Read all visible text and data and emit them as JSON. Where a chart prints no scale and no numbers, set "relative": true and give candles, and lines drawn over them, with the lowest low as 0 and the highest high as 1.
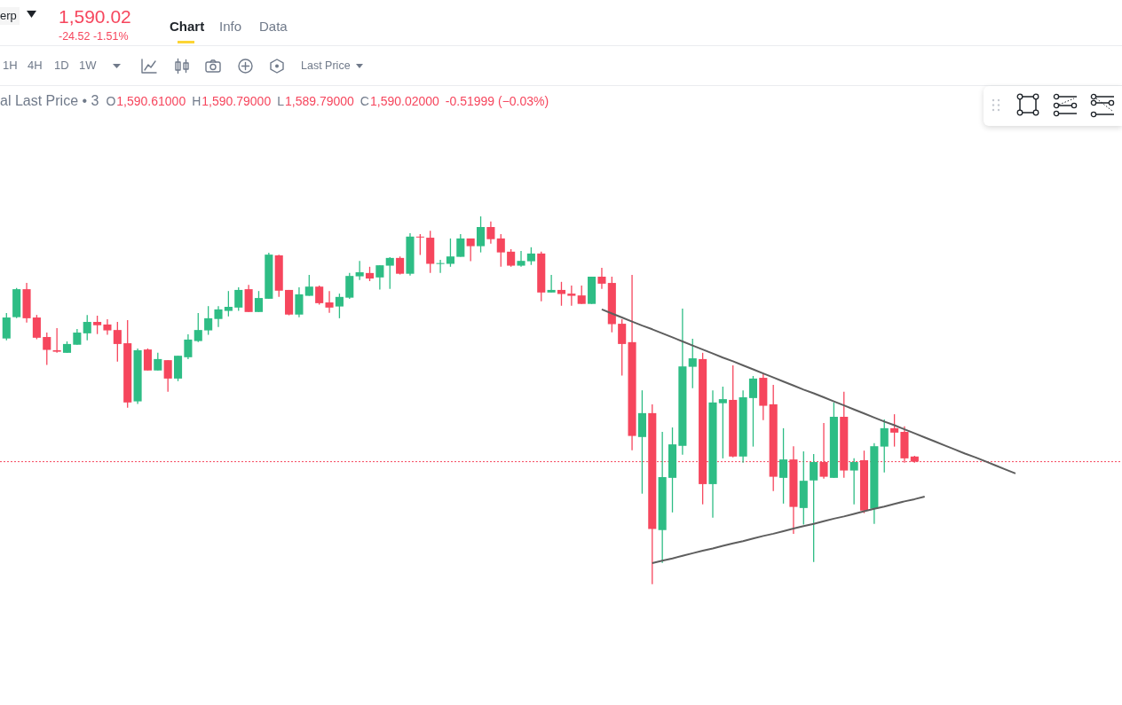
{
  "chart_data": {
    "type": "candlestick",
    "relative": true,
    "categories": [
      null,
      null,
      null,
      null,
      null,
      null,
      null,
      null,
      null,
      null,
      null,
      null,
      null,
      null,
      null,
      null,
      null,
      null,
      null,
      null,
      null,
      null,
      null,
      null,
      null,
      null,
      null,
      null,
      null,
      null,
      null,
      null,
      null,
      null,
      null,
      null,
      null,
      null,
      null,
      null,
      null,
      null,
      null,
      null,
      null,
      null,
      null,
      null,
      null,
      null,
      null,
      null,
      null,
      null,
      null,
      null,
      null,
      null,
      null,
      null,
      null,
      null,
      null,
      null,
      null,
      null,
      null,
      null,
      null,
      null,
      null,
      null,
      null,
      null,
      null,
      null,
      null,
      null,
      null,
      null,
      null,
      null,
      null,
      null,
      null,
      null,
      null,
      null,
      null,
      null,
      null,
      null,
      null,
      null,
      null,
      null,
      null,
      null,
      null,
      null,
      null
    ],
    "ohlc": [
      [
        0.668,
        0.737,
        0.663,
        0.725
      ],
      [
        0.726,
        0.805,
        0.723,
        0.802
      ],
      [
        0.802,
        0.819,
        0.711,
        0.723
      ],
      [
        0.725,
        0.732,
        0.666,
        0.67
      ],
      [
        0.672,
        0.684,
        0.596,
        0.637
      ],
      [
        0.636,
        0.696,
        0.629,
        0.632
      ],
      [
        0.629,
        0.66,
        0.629,
        0.653
      ],
      [
        0.651,
        0.694,
        0.651,
        0.684
      ],
      [
        0.682,
        0.732,
        0.663,
        0.713
      ],
      [
        0.713,
        0.73,
        0.68,
        0.704
      ],
      [
        0.706,
        0.72,
        0.678,
        0.69
      ],
      [
        0.691,
        0.713,
        0.605,
        0.653
      ],
      [
        0.655,
        0.718,
        0.48,
        0.494
      ],
      [
        0.497,
        0.641,
        0.49,
        0.636
      ],
      [
        0.638,
        0.641,
        0.581,
        0.581
      ],
      [
        0.581,
        0.629,
        0.581,
        0.612
      ],
      [
        0.609,
        0.609,
        0.523,
        0.559
      ],
      [
        0.559,
        0.621,
        0.552,
        0.621
      ],
      [
        0.617,
        0.679,
        0.612,
        0.665
      ],
      [
        0.661,
        0.737,
        0.658,
        0.691
      ],
      [
        0.69,
        0.756,
        0.678,
        0.723
      ],
      [
        0.721,
        0.756,
        0.699,
        0.747
      ],
      [
        0.743,
        0.797,
        0.728,
        0.754
      ],
      [
        0.752,
        0.807,
        0.743,
        0.8
      ],
      [
        0.802,
        0.814,
        0.74,
        0.74
      ],
      [
        0.74,
        0.797,
        0.74,
        0.778
      ],
      [
        0.776,
        0.901,
        0.776,
        0.896
      ],
      [
        0.894,
        0.896,
        0.781,
        0.798
      ],
      [
        0.8,
        0.8,
        0.731,
        0.733
      ],
      [
        0.733,
        0.807,
        0.726,
        0.788
      ],
      [
        0.784,
        0.841,
        0.784,
        0.809
      ],
      [
        0.809,
        0.812,
        0.76,
        0.764
      ],
      [
        0.766,
        0.797,
        0.738,
        0.752
      ],
      [
        0.755,
        0.79,
        0.723,
        0.781
      ],
      [
        0.779,
        0.846,
        0.776,
        0.838
      ],
      [
        0.837,
        0.879,
        0.827,
        0.848
      ],
      [
        0.846,
        0.863,
        0.824,
        0.831
      ],
      [
        0.834,
        0.867,
        0.801,
        0.867
      ],
      [
        0.866,
        0.889,
        0.803,
        0.887
      ],
      [
        0.887,
        0.891,
        0.842,
        0.844
      ],
      [
        0.844,
        0.954,
        0.839,
        0.945
      ],
      [
        0.945,
        0.952,
        0.895,
        0.943
      ],
      [
        0.942,
        0.961,
        0.846,
        0.871
      ],
      [
        0.871,
        0.882,
        0.846,
        0.873
      ],
      [
        0.871,
        0.94,
        0.863,
        0.891
      ],
      [
        0.89,
        0.952,
        0.89,
        0.94
      ],
      [
        0.94,
        0.94,
        0.878,
        0.919
      ],
      [
        0.919,
        1.0,
        0.902,
        0.971
      ],
      [
        0.971,
        0.986,
        0.926,
        0.938
      ],
      [
        0.94,
        0.952,
        0.863,
        0.902
      ],
      [
        0.904,
        0.911,
        0.863,
        0.866
      ],
      [
        0.866,
        0.906,
        0.863,
        0.879
      ],
      [
        0.878,
        0.916,
        0.868,
        0.899
      ],
      [
        0.899,
        0.904,
        0.769,
        0.793
      ],
      [
        0.793,
        0.841,
        0.793,
        0.8
      ],
      [
        0.8,
        0.822,
        0.757,
        0.789
      ],
      [
        0.79,
        0.812,
        0.757,
        0.784
      ],
      [
        0.785,
        0.812,
        0.762,
        0.762
      ],
      [
        0.762,
        0.836,
        0.762,
        0.836
      ],
      [
        0.836,
        0.86,
        0.803,
        0.817
      ],
      [
        0.819,
        0.836,
        0.685,
        0.707
      ],
      [
        0.708,
        0.72,
        0.567,
        0.653
      ],
      [
        0.658,
        0.841,
        0.364,
        0.403
      ],
      [
        0.4,
        0.527,
        0.246,
        0.465
      ],
      [
        0.465,
        0.489,
        0,
        0.15
      ],
      [
        0.147,
        0.414,
        0.058,
        0.291
      ],
      [
        0.289,
        0.426,
        0.195,
        0.38
      ],
      [
        0.376,
        0.749,
        0.352,
        0.592
      ],
      [
        0.591,
        0.667,
        0.533,
        0.614
      ],
      [
        0.612,
        0.629,
        0.217,
        0.272
      ],
      [
        0.272,
        0.527,
        0.181,
        0.494
      ],
      [
        0.492,
        0.537,
        0.342,
        0.503
      ],
      [
        0.501,
        0.595,
        0.345,
        0.347
      ],
      [
        0.347,
        0.527,
        0.33,
        0.508
      ],
      [
        0.506,
        0.566,
        0.374,
        0.559
      ],
      [
        0.561,
        0.571,
        0.446,
        0.485
      ],
      [
        0.489,
        0.542,
        0.253,
        0.292
      ],
      [
        0.289,
        0.424,
        0.219,
        0.339
      ],
      [
        0.339,
        0.375,
        0.137,
        0.21
      ],
      [
        0.207,
        0.361,
        0.162,
        0.281
      ],
      [
        0.282,
        0.354,
        0.06,
        0.332
      ],
      [
        0.332,
        0.438,
        0.287,
        0.292
      ],
      [
        0.289,
        0.494,
        0.289,
        0.455
      ],
      [
        0.455,
        0.523,
        0.289,
        0.309
      ],
      [
        0.309,
        0.342,
        0.217,
        0.332
      ],
      [
        0.337,
        0.363,
        0.193,
        0.2
      ],
      [
        0.205,
        0.383,
        0.164,
        0.375
      ],
      [
        0.374,
        0.448,
        0.304,
        0.424
      ],
      [
        0.424,
        0.462,
        0.374,
        0.412
      ],
      [
        0.414,
        0.429,
        0.33,
        0.342
      ],
      [
        0.347,
        0.349,
        0.33,
        0.333
      ],
      null,
      null,
      null,
      null,
      null,
      null,
      null,
      null,
      null,
      null
    ],
    "colors": [
      "#2ebd85",
      "#2ebd85",
      "#f6465d",
      "#f6465d",
      "#f6465d",
      "#f6465d",
      "#2ebd85",
      "#2ebd85",
      "#2ebd85",
      "#f6465d",
      "#f6465d",
      "#f6465d",
      "#f6465d",
      "#2ebd85",
      "#f6465d",
      "#2ebd85",
      "#f6465d",
      "#2ebd85",
      "#2ebd85",
      "#2ebd85",
      "#2ebd85",
      "#2ebd85",
      "#2ebd85",
      "#2ebd85",
      "#f6465d",
      "#2ebd85",
      "#2ebd85",
      "#f6465d",
      "#f6465d",
      "#2ebd85",
      "#2ebd85",
      "#f6465d",
      "#f6465d",
      "#2ebd85",
      "#2ebd85",
      "#2ebd85",
      "#f6465d",
      "#2ebd85",
      "#2ebd85",
      "#f6465d",
      "#2ebd85",
      "#f6465d",
      "#f6465d",
      "#2ebd85",
      "#2ebd85",
      "#2ebd85",
      "#f6465d",
      "#2ebd85",
      "#f6465d",
      "#f6465d",
      "#f6465d",
      "#2ebd85",
      "#2ebd85",
      "#f6465d",
      "#2ebd85",
      "#f6465d",
      "#f6465d",
      "#f6465d",
      "#2ebd85",
      "#f6465d",
      "#f6465d",
      "#f6465d",
      "#f6465d",
      "#2ebd85",
      "#f6465d",
      "#2ebd85",
      "#2ebd85",
      "#2ebd85",
      "#2ebd85",
      "#f6465d",
      "#2ebd85",
      "#2ebd85",
      "#f6465d",
      "#2ebd85",
      "#2ebd85",
      "#f6465d",
      "#f6465d",
      "#2ebd85",
      "#f6465d",
      "#2ebd85",
      "#2ebd85",
      "#f6465d",
      "#2ebd85",
      "#f6465d",
      "#2ebd85",
      "#f6465d",
      "#2ebd85",
      "#2ebd85",
      "#f6465d",
      "#f6465d",
      "#f6465d",
      null,
      null,
      null,
      null,
      null,
      null,
      null,
      null,
      null,
      null
    ],
    "series": [
      {
        "type": "line",
        "color": "#5e5e5e",
        "values": [
          null,
          null,
          null,
          null,
          null,
          null,
          null,
          null,
          null,
          null,
          null,
          null,
          null,
          null,
          null,
          null,
          null,
          null,
          null,
          null,
          null,
          null,
          null,
          null,
          null,
          null,
          null,
          null,
          null,
          null,
          null,
          null,
          null,
          null,
          null,
          null,
          null,
          null,
          null,
          null,
          null,
          null,
          null,
          null,
          null,
          null,
          null,
          null,
          null,
          null,
          null,
          null,
          null,
          null,
          null,
          null,
          null,
          null,
          null,
          0.747,
          0.736,
          0.725,
          0.714,
          0.703,
          0.693,
          0.682,
          0.671,
          0.66,
          0.649,
          0.638,
          0.627,
          0.616,
          0.606,
          0.595,
          0.584,
          0.573,
          0.562,
          0.551,
          0.54,
          0.529,
          0.519,
          0.508,
          0.497,
          0.486,
          0.475,
          0.464,
          0.453,
          0.442,
          0.432,
          0.421,
          0.41,
          0.399,
          0.388,
          0.377,
          0.366,
          0.355,
          0.345,
          0.334,
          0.323,
          0.312,
          0.301
        ]
      },
      {
        "type": "line",
        "color": "#5e5e5e",
        "values": [
          null,
          null,
          null,
          null,
          null,
          null,
          null,
          null,
          null,
          null,
          null,
          null,
          null,
          null,
          null,
          null,
          null,
          null,
          null,
          null,
          null,
          null,
          null,
          null,
          null,
          null,
          null,
          null,
          null,
          null,
          null,
          null,
          null,
          null,
          null,
          null,
          null,
          null,
          null,
          null,
          null,
          null,
          null,
          null,
          null,
          null,
          null,
          null,
          null,
          null,
          null,
          null,
          null,
          null,
          null,
          null,
          null,
          null,
          null,
          null,
          null,
          null,
          null,
          null,
          0.057,
          0.064,
          0.07,
          0.077,
          0.084,
          0.091,
          0.097,
          0.104,
          0.111,
          0.117,
          0.124,
          0.131,
          0.137,
          0.144,
          0.151,
          0.158,
          0.164,
          0.171,
          0.178,
          0.184,
          0.191,
          0.198,
          0.205,
          0.211,
          0.218,
          0.225,
          0.231,
          0.238,
          null,
          null,
          null,
          null,
          null,
          null,
          null,
          null,
          null
        ]
      }
    ],
    "ref_lines": [
      {
        "axis": "y",
        "value": 0.333,
        "color": "#f6465d",
        "line_style": "dotted"
      }
    ],
    "annotations": [
      "erp",
      "1,590.02",
      "-24.52 -1.51%",
      "Chart",
      "Info",
      "Data",
      "1H",
      "4H",
      "1D",
      "1W",
      "Last Price",
      "al Last Price • 3",
      "O",
      "1,590.61000",
      "H",
      "1,590.79000",
      "L",
      "1,589.79000",
      "C",
      "1,590.02000",
      "-0.51999 (−0.03%)"
    ]
  }
}
